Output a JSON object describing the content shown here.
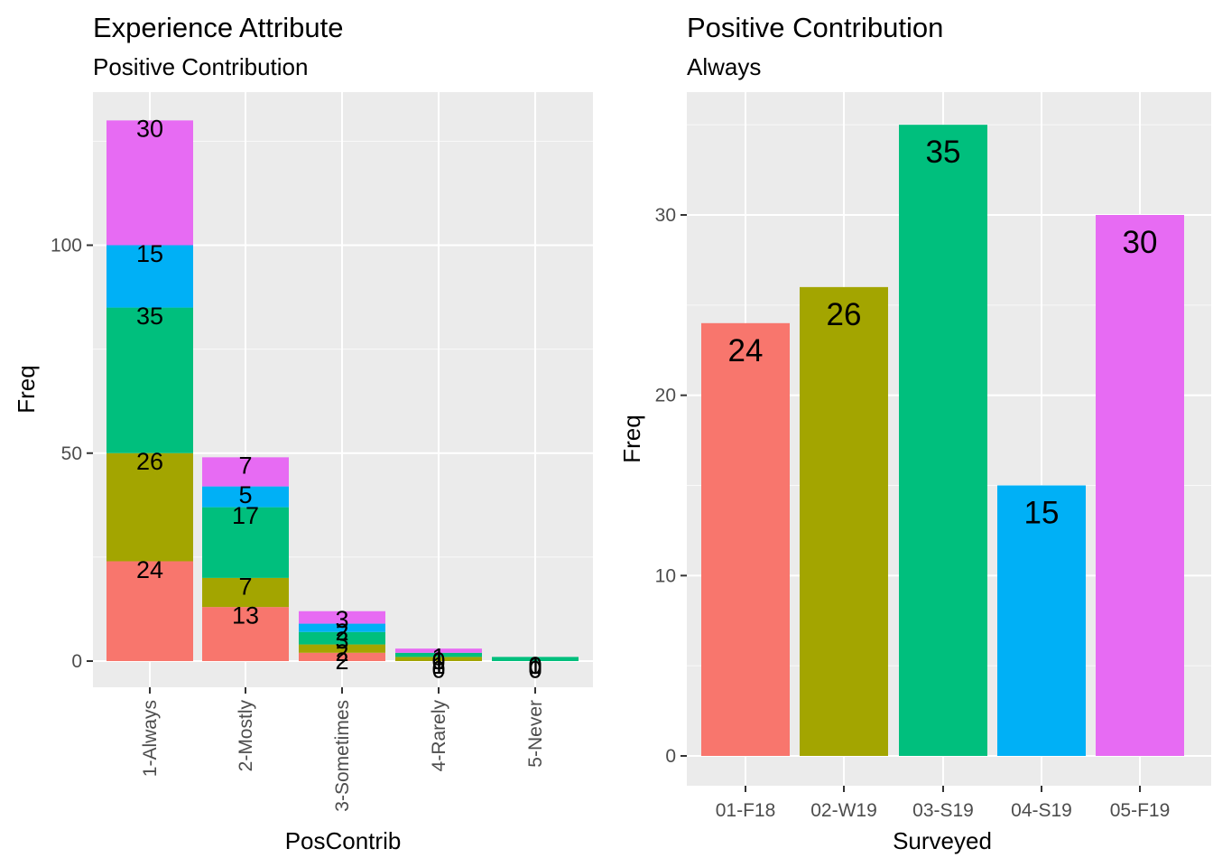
{
  "colors": {
    "01-F18": "#F8766D",
    "02-W19": "#A3A500",
    "03-S19": "#00BF7D",
    "04-S19": "#00B0F6",
    "05-F19": "#E76BF3",
    "panel": "#EBEBEB"
  },
  "chart_data": [
    {
      "type": "bar",
      "stacked": true,
      "title": "Experience Attribute",
      "subtitle": "Positive Contribution",
      "xlabel": "PosContrib",
      "ylabel": "Freq",
      "ylim": [
        0,
        130
      ],
      "yticks": [
        0,
        50,
        100
      ],
      "grid": true,
      "legend": "none",
      "categories": [
        "1-Always",
        "2-Mostly",
        "3-Sometimes",
        "4-Rarely",
        "5-Never"
      ],
      "series": [
        {
          "key": "01-F18",
          "values": [
            24,
            13,
            2,
            0,
            0
          ]
        },
        {
          "key": "02-W19",
          "values": [
            26,
            7,
            2,
            1,
            0
          ]
        },
        {
          "key": "03-S19",
          "values": [
            35,
            17,
            3,
            1,
            1
          ]
        },
        {
          "key": "04-S19",
          "values": [
            15,
            5,
            2,
            0,
            0
          ]
        },
        {
          "key": "05-F19",
          "values": [
            30,
            7,
            3,
            1,
            0
          ]
        }
      ]
    },
    {
      "type": "bar",
      "title": "Positive Contribution",
      "subtitle": "Always",
      "xlabel": "Surveyed",
      "ylabel": "Freq",
      "ylim": [
        0,
        35
      ],
      "yticks": [
        0,
        10,
        20,
        30
      ],
      "grid": true,
      "legend": "none",
      "categories": [
        "01-F18",
        "02-W19",
        "03-S19",
        "04-S19",
        "05-F19"
      ],
      "values": [
        24,
        26,
        35,
        15,
        30
      ]
    }
  ]
}
